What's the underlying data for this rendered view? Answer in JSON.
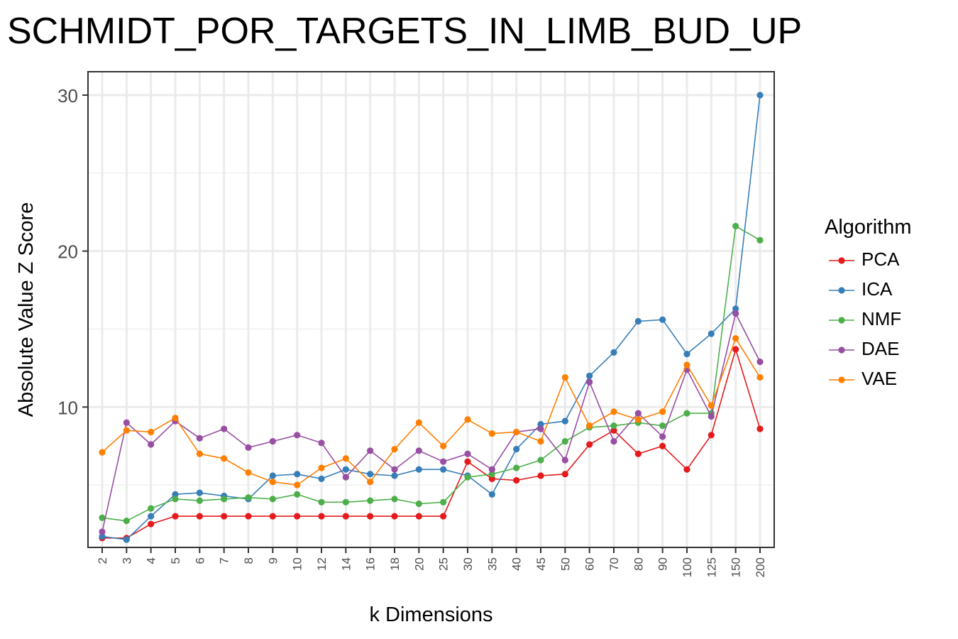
{
  "chart_data": {
    "type": "line",
    "title": "SCHMIDT_POR_TARGETS_IN_LIMB_BUD_UP",
    "xlabel": "k Dimensions",
    "ylabel": "Absolute Value Z Score",
    "legend_title": "Algorithm",
    "legend_position": "right",
    "grid": true,
    "x_scale": "categorical",
    "categories": [
      "2",
      "3",
      "4",
      "5",
      "6",
      "7",
      "8",
      "9",
      "10",
      "12",
      "14",
      "16",
      "18",
      "20",
      "25",
      "30",
      "35",
      "40",
      "45",
      "50",
      "60",
      "70",
      "80",
      "90",
      "100",
      "125",
      "150",
      "200"
    ],
    "ylim": [
      1,
      31.5
    ],
    "yticks": [
      10,
      20,
      30
    ],
    "series": [
      {
        "name": "PCA",
        "color": "#E41A1C",
        "values": [
          1.6,
          1.6,
          2.5,
          3.0,
          3.0,
          3.0,
          3.0,
          3.0,
          3.0,
          3.0,
          3.0,
          3.0,
          3.0,
          3.0,
          3.0,
          6.5,
          5.4,
          5.3,
          5.6,
          5.7,
          7.6,
          8.5,
          7.0,
          7.5,
          6.0,
          8.2,
          13.7,
          8.6
        ]
      },
      {
        "name": "ICA",
        "color": "#377EB8",
        "values": [
          1.7,
          1.5,
          3.0,
          4.4,
          4.5,
          4.3,
          4.1,
          5.6,
          5.7,
          5.4,
          6.0,
          5.7,
          5.6,
          6.0,
          6.0,
          5.6,
          4.4,
          7.3,
          8.9,
          9.1,
          12.0,
          13.5,
          15.5,
          15.6,
          13.4,
          14.7,
          16.3,
          30.0
        ]
      },
      {
        "name": "NMF",
        "color": "#4DAF4A",
        "values": [
          2.9,
          2.7,
          3.5,
          4.1,
          4.0,
          4.1,
          4.2,
          4.1,
          4.4,
          3.9,
          3.9,
          4.0,
          4.1,
          3.8,
          3.9,
          5.5,
          5.7,
          6.1,
          6.6,
          7.8,
          8.7,
          8.8,
          9.0,
          8.8,
          9.6,
          9.6,
          21.6,
          20.7
        ]
      },
      {
        "name": "DAE",
        "color": "#984EA3",
        "values": [
          2.0,
          9.0,
          7.6,
          9.1,
          8.0,
          8.6,
          7.4,
          7.8,
          8.2,
          7.7,
          5.5,
          7.2,
          6.0,
          7.2,
          6.5,
          7.0,
          6.0,
          8.4,
          8.6,
          6.6,
          11.6,
          7.8,
          9.6,
          8.1,
          12.4,
          9.4,
          16.0,
          12.9
        ]
      },
      {
        "name": "VAE",
        "color": "#FF7F00",
        "values": [
          7.1,
          8.5,
          8.4,
          9.3,
          7.0,
          6.7,
          5.8,
          5.2,
          5.0,
          6.1,
          6.7,
          5.2,
          7.3,
          9.0,
          7.5,
          9.2,
          8.3,
          8.4,
          7.8,
          11.9,
          8.8,
          9.7,
          9.2,
          9.7,
          12.7,
          10.1,
          14.4,
          11.9
        ]
      }
    ]
  }
}
